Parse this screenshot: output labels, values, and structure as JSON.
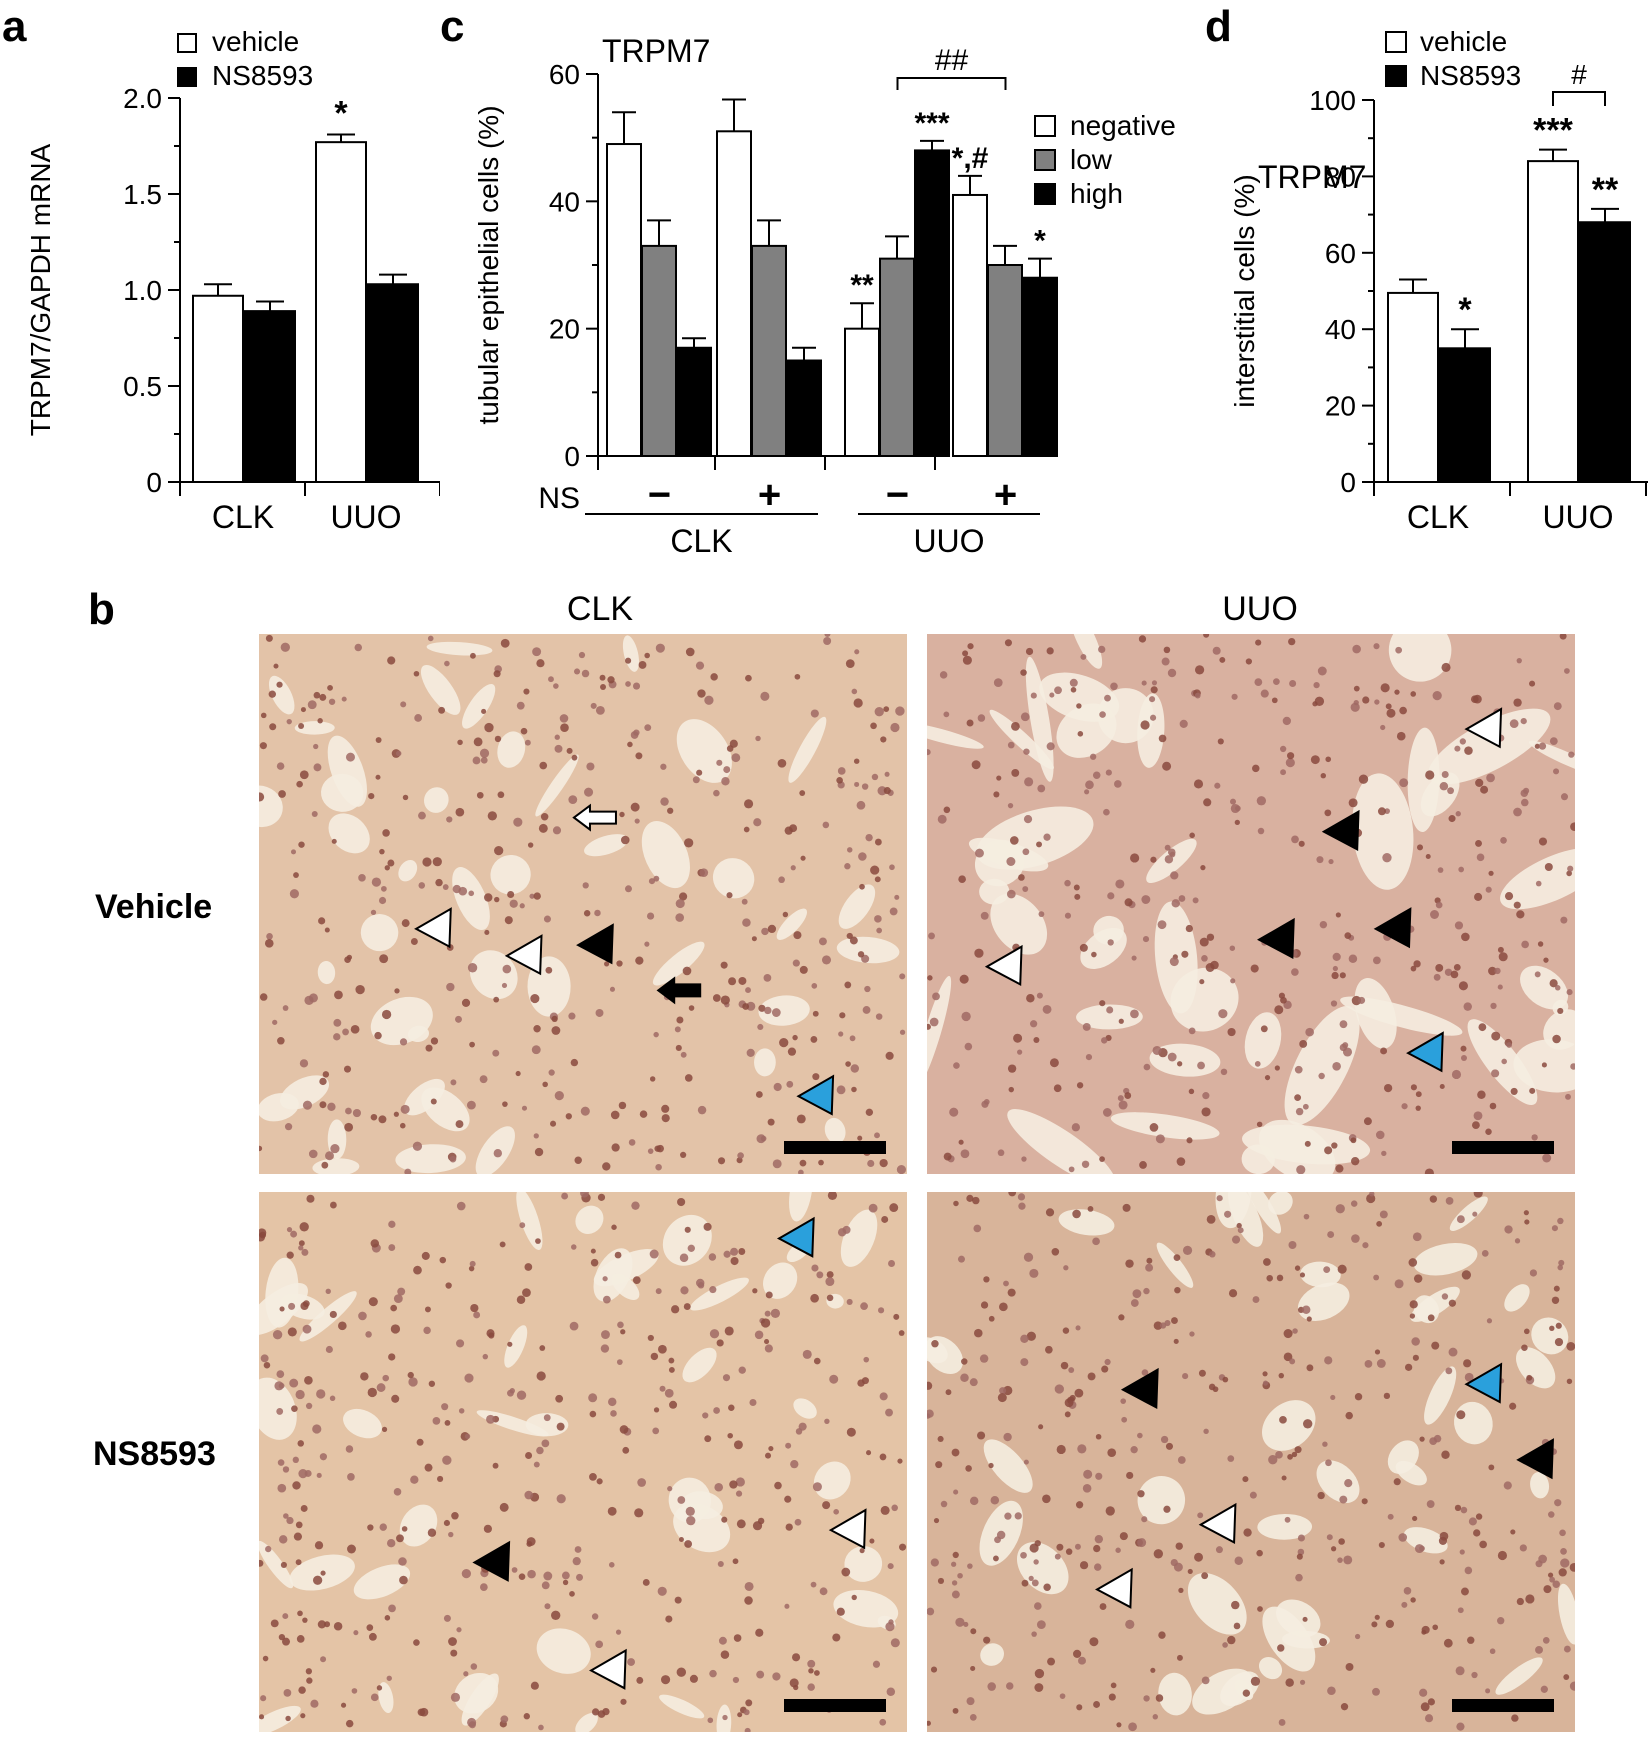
{
  "panel_labels": {
    "a": "a",
    "b": "b",
    "c": "c",
    "d": "d"
  },
  "chart_data": [
    {
      "panel": "a",
      "type": "bar",
      "title": "",
      "ylabel": "TRPM7/GAPDH mRNA",
      "xlabel": "",
      "ylim": [
        0,
        2.0
      ],
      "yticks": [
        "0",
        "0.5",
        "1.0",
        "1.5",
        "2.0"
      ],
      "categories": [
        "CLK",
        "UUO"
      ],
      "series": [
        {
          "name": "vehicle",
          "color": "#ffffff",
          "values": [
            0.97,
            1.77
          ],
          "errors": [
            0.06,
            0.04
          ],
          "marks": [
            "",
            "*"
          ]
        },
        {
          "name": "NS8593",
          "color": "#000000",
          "values": [
            0.89,
            1.03
          ],
          "errors": [
            0.05,
            0.05
          ],
          "marks": [
            "",
            ""
          ]
        }
      ],
      "legend": "top-left",
      "grid": false
    },
    {
      "panel": "c",
      "type": "bar",
      "title": "TRPM7",
      "ylabel": "tubular epithelial cells (%)",
      "xlabel": "",
      "ylim": [
        0,
        60
      ],
      "yticks": [
        "0",
        "20",
        "40",
        "60"
      ],
      "row_label": "NS",
      "groups": [
        {
          "ns": "−",
          "group": "CLK"
        },
        {
          "ns": "+",
          "group": "CLK"
        },
        {
          "ns": "−",
          "group": "UUO"
        },
        {
          "ns": "+",
          "group": "UUO"
        }
      ],
      "group_labels": [
        "CLK",
        "UUO"
      ],
      "series": [
        {
          "name": "negative",
          "color": "#ffffff",
          "values": [
            49,
            51,
            20,
            41
          ],
          "errors": [
            5,
            5,
            4,
            3
          ],
          "marks": [
            "",
            "",
            "**",
            "*,#"
          ]
        },
        {
          "name": "low",
          "color": "#808080",
          "values": [
            33,
            33,
            31,
            30
          ],
          "errors": [
            4,
            4,
            3.5,
            3
          ],
          "marks": [
            "",
            "",
            "",
            ""
          ]
        },
        {
          "name": "high",
          "color": "#000000",
          "values": [
            17,
            15,
            48,
            28
          ],
          "errors": [
            1.5,
            2,
            1.5,
            3
          ],
          "marks": [
            "",
            "",
            "***",
            "*"
          ]
        }
      ],
      "bracket": {
        "label": "##",
        "from_group": 2,
        "to_group": 3
      },
      "legend": "right",
      "grid": false
    },
    {
      "panel": "d",
      "type": "bar",
      "title": "TRPM7",
      "ylabel": "interstitial cells (%)",
      "xlabel": "",
      "ylim": [
        0,
        100
      ],
      "yticks": [
        "0",
        "20",
        "40",
        "60",
        "80",
        "100"
      ],
      "categories": [
        "CLK",
        "UUO"
      ],
      "series": [
        {
          "name": "vehicle",
          "color": "#ffffff",
          "values": [
            49.5,
            84
          ],
          "errors": [
            3.5,
            3
          ],
          "marks": [
            "",
            "***"
          ]
        },
        {
          "name": "NS8593",
          "color": "#000000",
          "values": [
            35,
            68
          ],
          "errors": [
            5,
            3.5
          ],
          "marks": [
            "*",
            "**"
          ]
        }
      ],
      "bracket": {
        "label": "#",
        "category": 1
      },
      "legend": "top-left",
      "grid": false
    }
  ],
  "panel_b": {
    "column_headers": [
      "CLK",
      "UUO"
    ],
    "row_labels": [
      "Vehicle",
      "NS8593"
    ],
    "images": [
      {
        "name": "clk-vehicle",
        "tissue": "#e3c3a8"
      },
      {
        "name": "uuo-vehicle",
        "tissue": "#d9b1a0"
      },
      {
        "name": "clk-ns8593",
        "tissue": "#e4c4a6"
      },
      {
        "name": "uuo-ns8593",
        "tissue": "#d8b49a"
      }
    ],
    "arrowhead_colors": {
      "black": "#000000",
      "white": "#ffffff",
      "blue": "#2aa0dc"
    }
  }
}
